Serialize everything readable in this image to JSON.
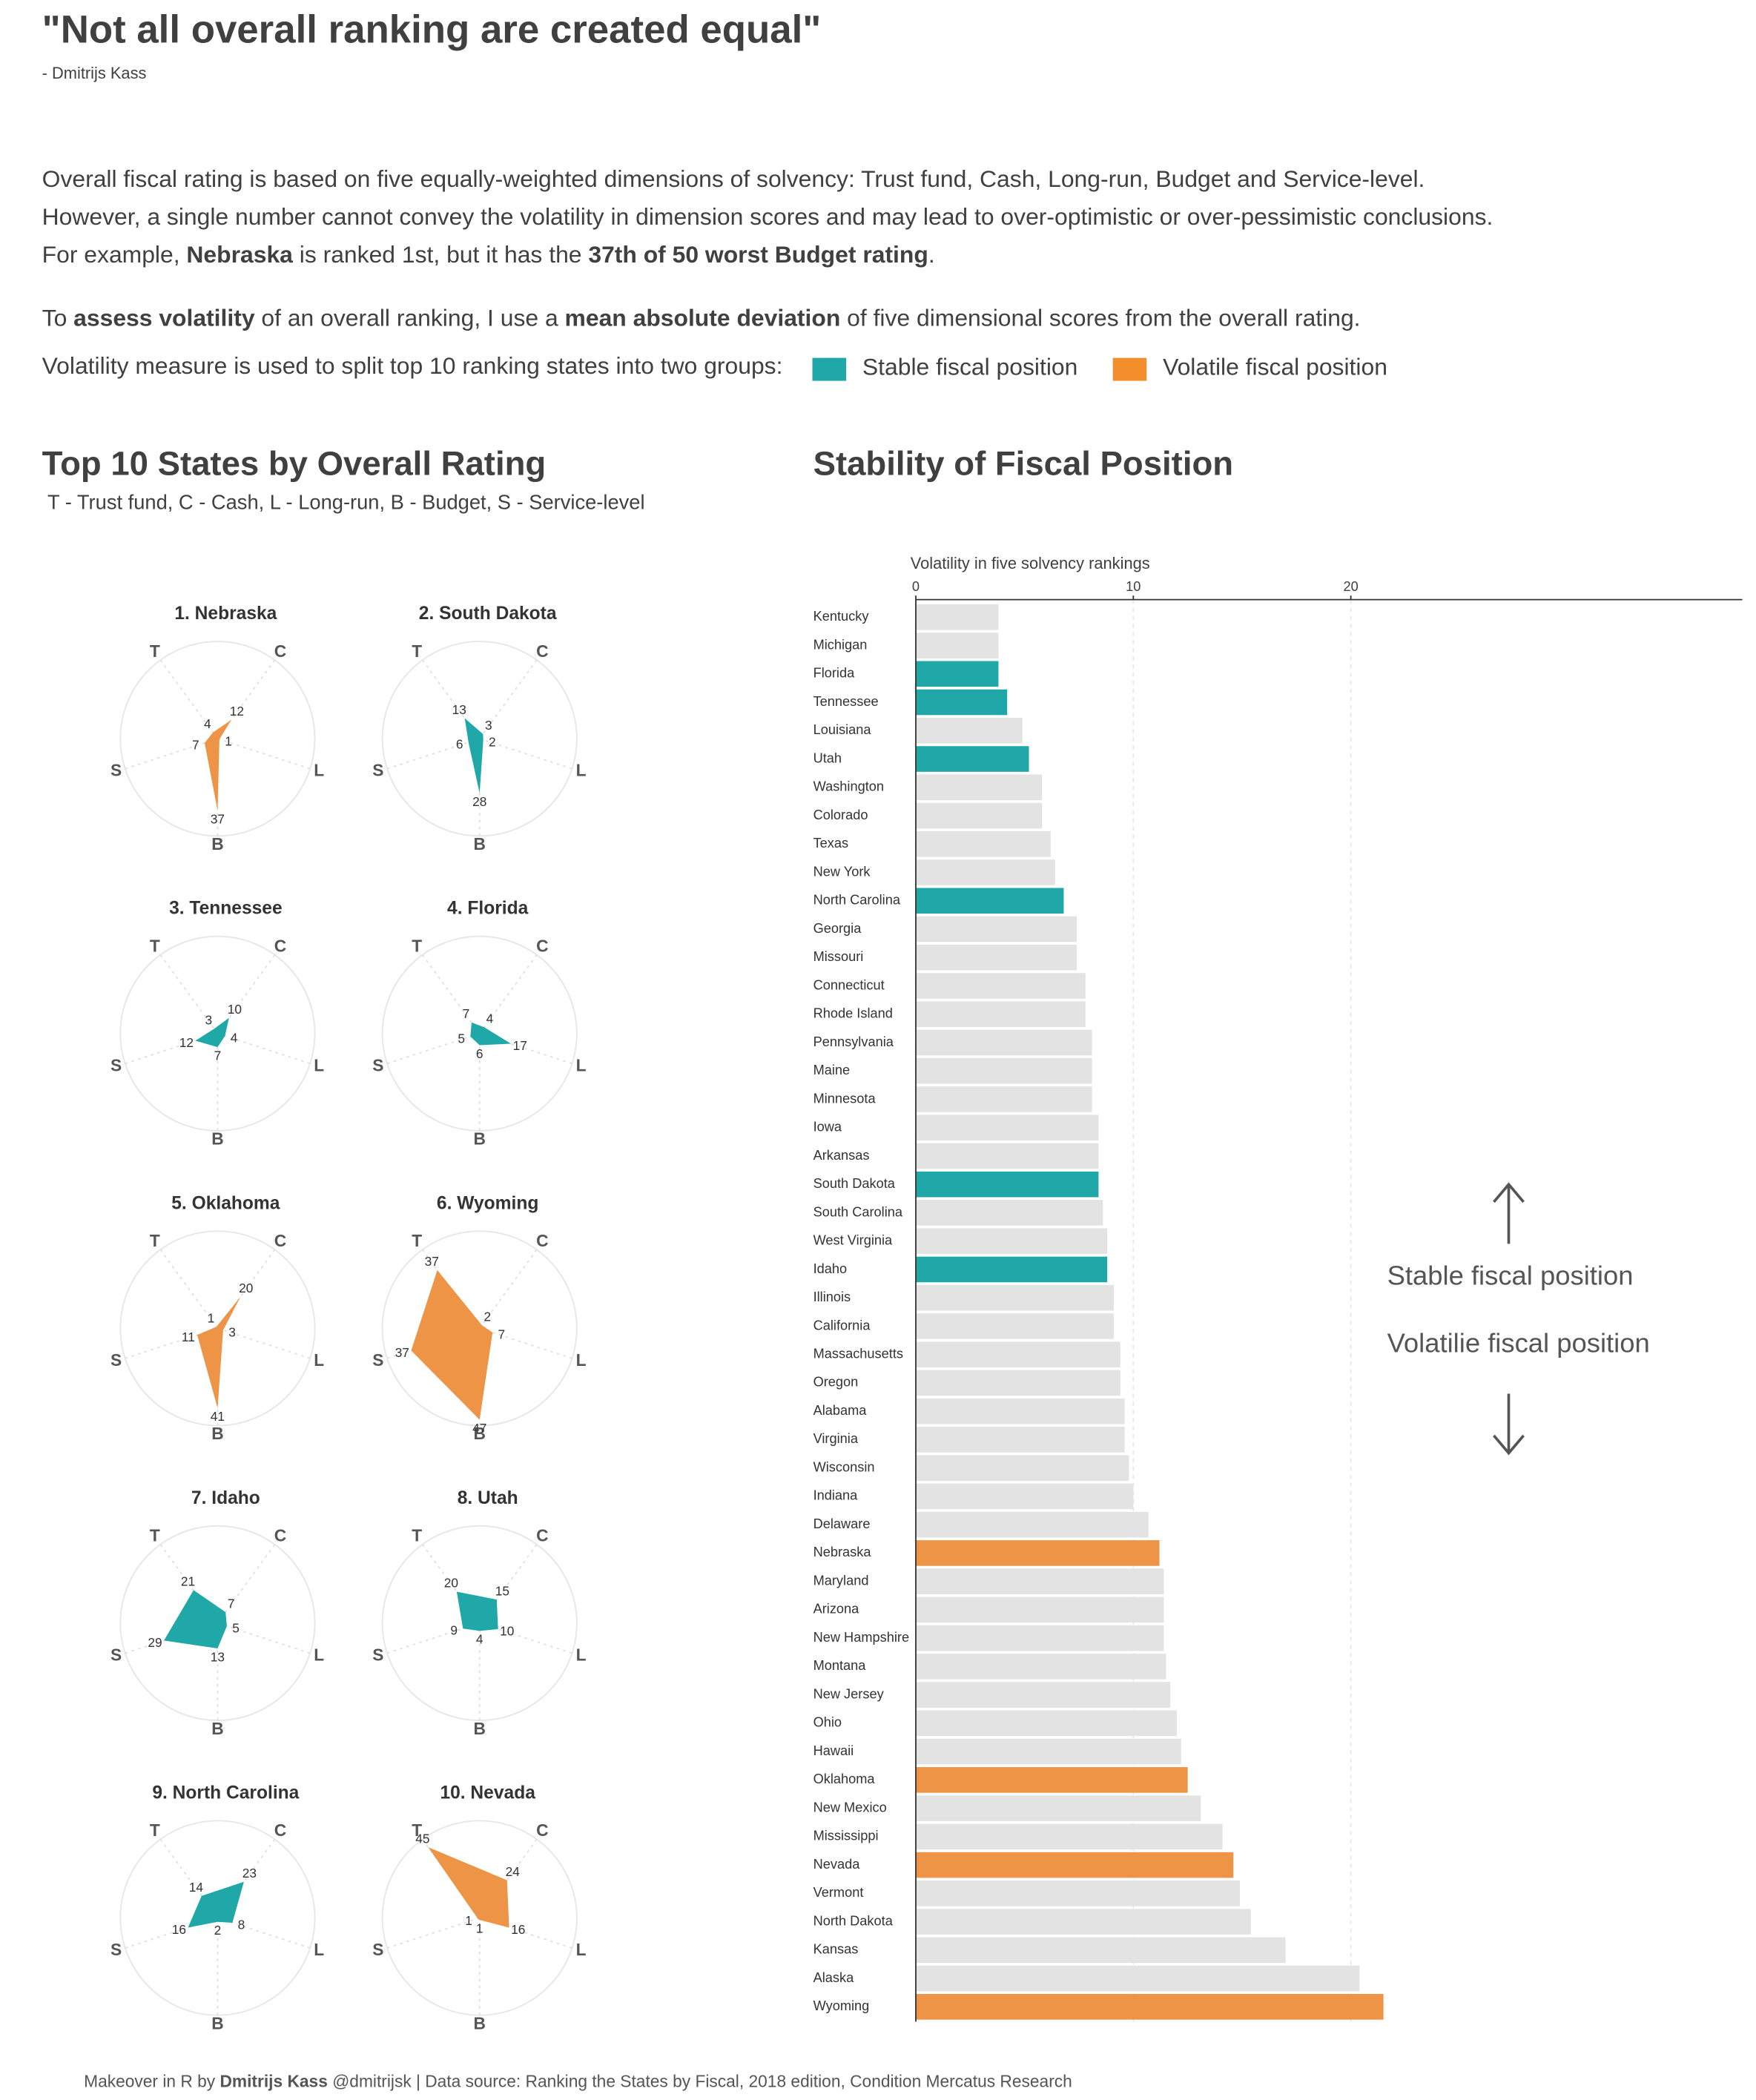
{
  "header": {
    "title": "\"Not all overall ranking are created equal\"",
    "author": "- Dmitrijs Kass"
  },
  "intro": [
    [
      {
        "text": "Overall fiscal rating is based on five equally-weighted dimensions of solvency: Trust fund, Cash, Long-run, Budget and Service-level."
      }
    ],
    [
      {
        "text": "However, a single number cannot convey the volatility in dimension scores and may lead to over-optimistic or over-pessimistic conclusions."
      }
    ],
    [
      {
        "text": "For example, "
      },
      {
        "text": "Nebraska",
        "bold": true
      },
      {
        "text": " is ranked 1st, but it has the "
      },
      {
        "text": "37th of 50 worst Budget rating",
        "bold": true
      },
      {
        "text": "."
      }
    ],
    [
      {
        "text": "To "
      },
      {
        "text": "assess volatility",
        "bold": true
      },
      {
        "text": " of an overall ranking, I use a "
      },
      {
        "text": "mean absolute deviation",
        "bold": true
      },
      {
        "text": " of five dimensional scores from the overall rating."
      }
    ]
  ],
  "legend": {
    "label": "Volatility measure is used to split top 10 ranking states into two groups:",
    "items": [
      {
        "name": "Stable fiscal position",
        "color": "#20a8a8"
      },
      {
        "name": "Volatile fiscal position",
        "color": "#f28e2b"
      }
    ]
  },
  "chart_data": [
    {
      "type": "radar",
      "title": "Top 10 States by Overall Rating",
      "subtitle": "T - Trust fund, C - Cash, L - Long-run, B - Budget, S - Service-level",
      "axes": [
        "T",
        "C",
        "L",
        "B",
        "S"
      ],
      "rlim": [
        0,
        50
      ],
      "panels": [
        {
          "title": "1. Nebraska",
          "color": "#ed9447",
          "values": [
            4,
            12,
            1,
            37,
            7
          ]
        },
        {
          "title": "2. South Dakota",
          "color": "#20a8a8",
          "values": [
            13,
            3,
            2,
            28,
            6
          ]
        },
        {
          "title": "3. Tennessee",
          "color": "#20a8a8",
          "values": [
            3,
            10,
            4,
            7,
            12
          ]
        },
        {
          "title": "4. Florida",
          "color": "#20a8a8",
          "values": [
            7,
            4,
            17,
            6,
            5
          ]
        },
        {
          "title": "5. Oklahoma",
          "color": "#ed9447",
          "values": [
            1,
            20,
            3,
            41,
            11
          ]
        },
        {
          "title": "6. Wyoming",
          "color": "#ed9447",
          "values": [
            37,
            2,
            7,
            47,
            37
          ]
        },
        {
          "title": "7. Idaho",
          "color": "#20a8a8",
          "values": [
            21,
            7,
            5,
            13,
            29
          ]
        },
        {
          "title": "8. Utah",
          "color": "#20a8a8",
          "values": [
            20,
            15,
            10,
            4,
            9
          ]
        },
        {
          "title": "9. North Carolina",
          "color": "#20a8a8",
          "values": [
            14,
            23,
            8,
            2,
            16
          ]
        },
        {
          "title": "10. Nevada",
          "color": "#ed9447",
          "values": [
            45,
            24,
            16,
            1,
            1
          ]
        }
      ]
    },
    {
      "type": "bar",
      "title": "Stability of Fiscal Position",
      "x_label": "Volatility in five solvency rankings",
      "categories": [
        "Kentucky",
        "Michigan",
        "Florida",
        "Tennessee",
        "Louisiana",
        "Utah",
        "Washington",
        "Colorado",
        "Texas",
        "New York",
        "North Carolina",
        "Georgia",
        "Missouri",
        "Connecticut",
        "Rhode Island",
        "Pennsylvania",
        "Maine",
        "Minnesota",
        "Iowa",
        "Arkansas",
        "South Dakota",
        "South Carolina",
        "West Virginia",
        "Idaho",
        "Illinois",
        "California",
        "Massachusetts",
        "Oregon",
        "Alabama",
        "Virginia",
        "Wisconsin",
        "Indiana",
        "Delaware",
        "Nebraska",
        "Maryland",
        "Arizona",
        "New Hampshire",
        "Montana",
        "New Jersey",
        "Ohio",
        "Hawaii",
        "Oklahoma",
        "New Mexico",
        "Mississippi",
        "Nevada",
        "Vermont",
        "North Dakota",
        "Kansas",
        "Alaska",
        "Wyoming"
      ],
      "values": [
        3.8,
        3.8,
        3.8,
        4.2,
        4.9,
        5.2,
        5.8,
        5.8,
        6.2,
        6.4,
        6.8,
        7.4,
        7.4,
        7.8,
        7.8,
        8.1,
        8.1,
        8.1,
        8.4,
        8.4,
        8.4,
        8.6,
        8.8,
        8.8,
        9.1,
        9.1,
        9.4,
        9.4,
        9.6,
        9.6,
        9.8,
        10.0,
        10.7,
        11.2,
        11.4,
        11.4,
        11.4,
        11.5,
        11.7,
        12.0,
        12.2,
        12.5,
        13.1,
        14.1,
        14.6,
        14.9,
        15.4,
        17.0,
        20.4,
        21.5
      ],
      "colors": [
        "#e3e3e3",
        "#e3e3e3",
        "#20a8a8",
        "#20a8a8",
        "#e3e3e3",
        "#20a8a8",
        "#e3e3e3",
        "#e3e3e3",
        "#e3e3e3",
        "#e3e3e3",
        "#20a8a8",
        "#e3e3e3",
        "#e3e3e3",
        "#e3e3e3",
        "#e3e3e3",
        "#e3e3e3",
        "#e3e3e3",
        "#e3e3e3",
        "#e3e3e3",
        "#e3e3e3",
        "#20a8a8",
        "#e3e3e3",
        "#e3e3e3",
        "#20a8a8",
        "#e3e3e3",
        "#e3e3e3",
        "#e3e3e3",
        "#e3e3e3",
        "#e3e3e3",
        "#e3e3e3",
        "#e3e3e3",
        "#e3e3e3",
        "#e3e3e3",
        "#ed9447",
        "#e3e3e3",
        "#e3e3e3",
        "#e3e3e3",
        "#e3e3e3",
        "#e3e3e3",
        "#e3e3e3",
        "#e3e3e3",
        "#ed9447",
        "#e3e3e3",
        "#e3e3e3",
        "#ed9447",
        "#e3e3e3",
        "#e3e3e3",
        "#e3e3e3",
        "#e3e3e3",
        "#ed9447"
      ],
      "xlim": [
        0,
        38
      ],
      "xticks": [
        0,
        10,
        20
      ],
      "grid": true,
      "annotations": [
        "Stable fiscal position",
        "Volatilie fiscal position"
      ]
    }
  ],
  "footer": [
    {
      "text": "Makeover in R by "
    },
    {
      "text": "Dmitrijs Kass",
      "bold": true
    },
    {
      "text": " @dmitrijsk | Data source: Ranking the States by Fiscal, 2018 edition, Condition Mercatus Research"
    }
  ]
}
